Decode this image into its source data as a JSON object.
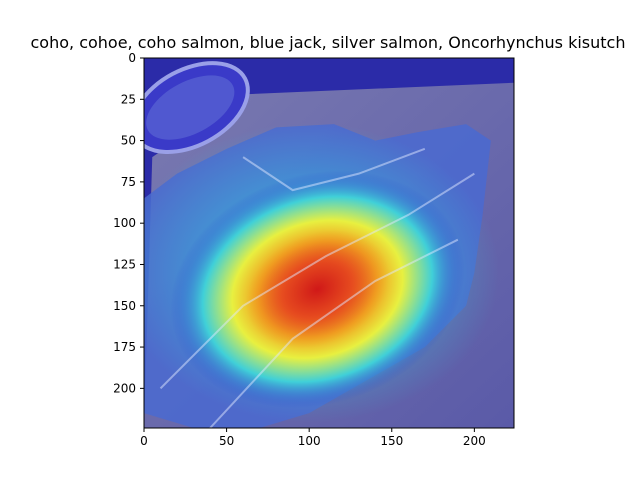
{
  "title": "coho, cohoe, coho salmon, blue jack, silver salmon, Oncorhynchus kisutch",
  "image": {
    "description": "Photo of several fish fillets on a cutting board with a jet-colormap saliency heatmap overlay",
    "width_units": 224,
    "height_units": 224
  },
  "axes": {
    "x_ticks": [
      0,
      50,
      100,
      150,
      200
    ],
    "y_ticks": [
      0,
      25,
      50,
      75,
      100,
      125,
      150,
      175,
      200
    ],
    "x_range": [
      0,
      224
    ],
    "y_range": [
      0,
      224
    ]
  },
  "heatmap": {
    "colormap": "jet",
    "peak_center": [
      105,
      140
    ],
    "overlay_colors": {
      "low": "#2020c0",
      "mid_low": "#30c8e0",
      "mid": "#e8f040",
      "mid_high": "#f0a020",
      "high": "#d01818"
    }
  },
  "colors": {
    "axis": "#000000",
    "background": "#ffffff"
  }
}
